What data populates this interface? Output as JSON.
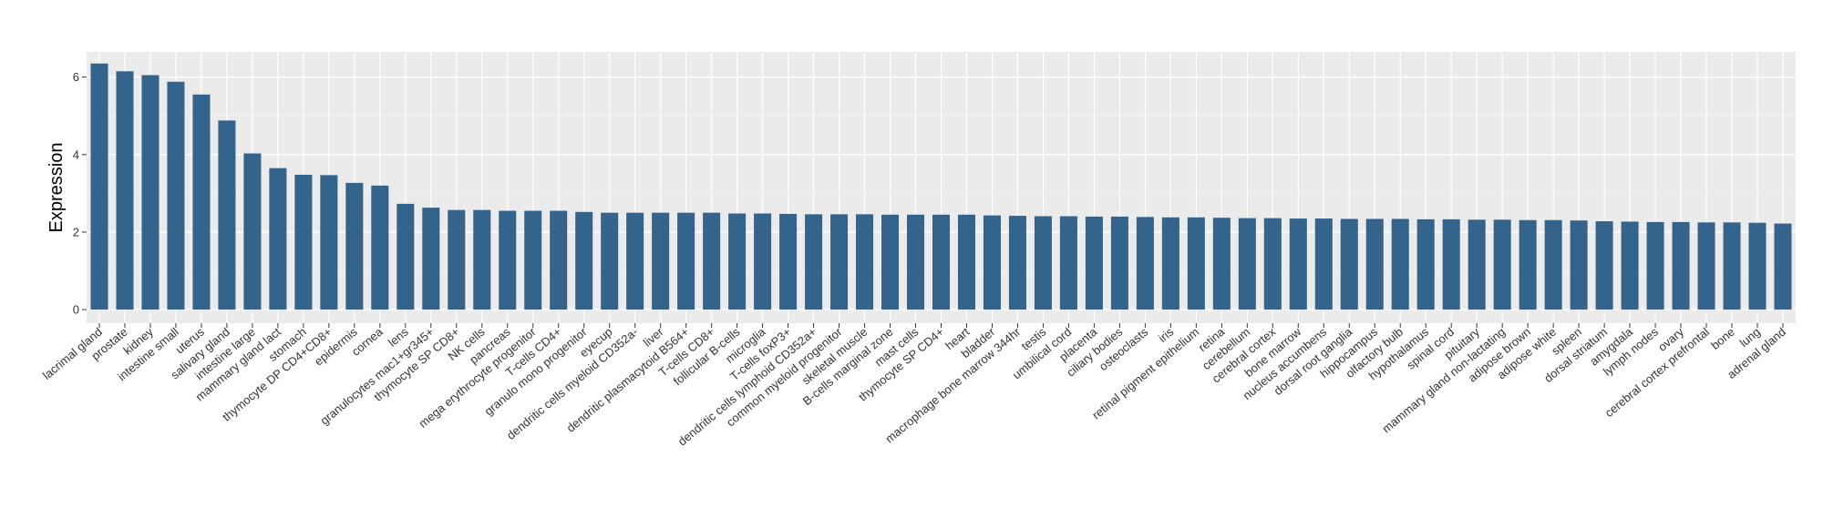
{
  "chart_data": {
    "type": "bar",
    "xlabel": "",
    "ylabel": "Expression",
    "ylim": [
      -0.35,
      6.65
    ],
    "yticks": [
      0,
      2,
      4,
      6
    ],
    "grid": true,
    "legend": "none",
    "colors": {
      "bar": "#34648c",
      "panel": "#ebebeb",
      "grid_major": "#ffffff",
      "grid_minor": "#f5f5f5",
      "tick_text": "#333333"
    },
    "categories": [
      "lacrimal gland",
      "prostate",
      "kidney",
      "intestine small",
      "uterus",
      "salivary gland",
      "intestine large",
      "mammary gland lact",
      "stomach",
      "thymocyte DP CD4+CD8+",
      "epidermis",
      "cornea",
      "lens",
      "granulocytes mac1+gr345+",
      "thymocyte SP CD8+",
      "NK cells",
      "pancreas",
      "mega erythrocyte progenitor",
      "T-cells CD4+",
      "granulo mono progenitor",
      "eyecup",
      "dendritic cells myeloid CD352a-",
      "liver",
      "dendritic plasmacytoid B564+",
      "T-cells CD8+",
      "follicular B-cells",
      "microglia",
      "T-cells foxP3+",
      "dendritic cells lymphoid CD352a+",
      "common myeloid progenitor",
      "skeletal muscle",
      "B-cells marginal zone",
      "mast cells",
      "thymocyte SP CD4+",
      "heart",
      "bladder",
      "macrophage bone marrow 344hr",
      "testis",
      "umbilical cord",
      "placenta",
      "ciliary bodies",
      "osteoclasts",
      "iris",
      "retinal pigment epithelium",
      "retina",
      "cerebellum",
      "cerebral cortex",
      "bone marrow",
      "nucleus accumbens",
      "dorsal root ganglia",
      "hippocampus",
      "olfactory bulb",
      "hypothalamus",
      "spinal cord",
      "pituitary",
      "mammary gland non-lactating",
      "adipose brown",
      "adipose white",
      "spleen",
      "dorsal striatum",
      "amygdala",
      "lymph nodes",
      "ovary",
      "cerebral cortex prefrontal",
      "bone",
      "lung",
      "adrenal gland"
    ],
    "values": [
      6.35,
      6.15,
      6.05,
      5.88,
      5.55,
      4.88,
      4.03,
      3.65,
      3.48,
      3.47,
      3.27,
      3.2,
      2.73,
      2.63,
      2.57,
      2.57,
      2.55,
      2.55,
      2.55,
      2.52,
      2.5,
      2.5,
      2.5,
      2.5,
      2.5,
      2.48,
      2.48,
      2.47,
      2.46,
      2.46,
      2.46,
      2.45,
      2.45,
      2.45,
      2.45,
      2.43,
      2.42,
      2.41,
      2.41,
      2.4,
      2.4,
      2.39,
      2.38,
      2.38,
      2.37,
      2.36,
      2.36,
      2.35,
      2.35,
      2.34,
      2.34,
      2.34,
      2.33,
      2.33,
      2.32,
      2.32,
      2.31,
      2.31,
      2.3,
      2.28,
      2.27,
      2.26,
      2.26,
      2.25,
      2.25,
      2.24,
      2.22
    ]
  }
}
